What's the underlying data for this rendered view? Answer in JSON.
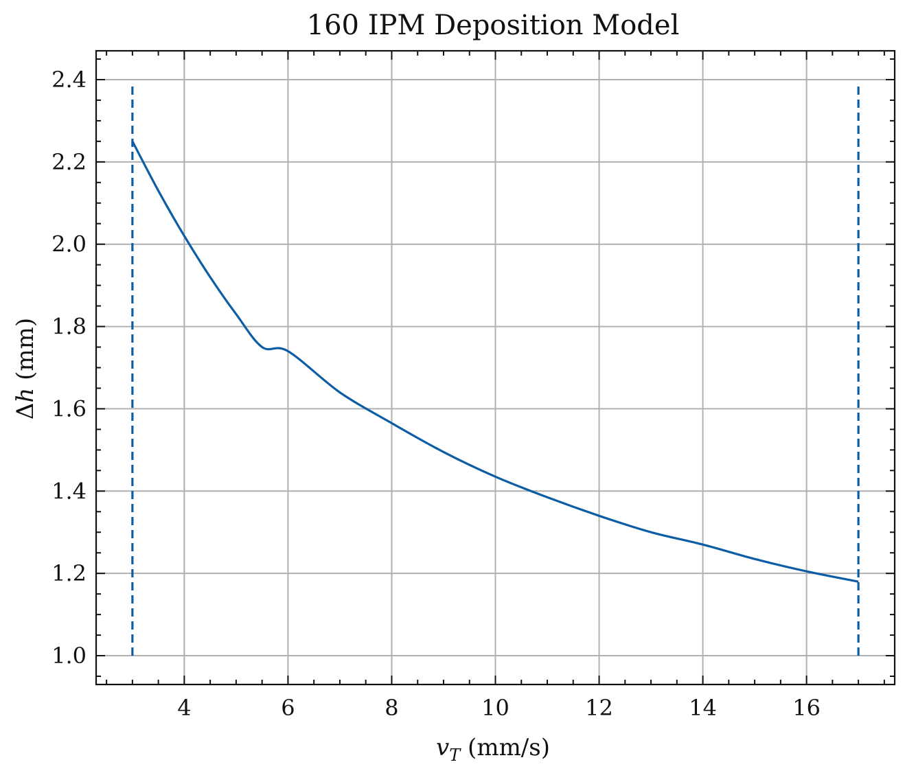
{
  "chart_data": {
    "type": "line",
    "title": "160 IPM Deposition Model",
    "xlabel": "v_T (mm/s)",
    "ylabel": "Δh (mm)",
    "xlim": [
      2.3,
      17.7
    ],
    "ylim": [
      0.93,
      2.47
    ],
    "x_ticks": [
      4,
      6,
      8,
      10,
      12,
      14,
      16
    ],
    "x_tick_labels": [
      "4",
      "6",
      "8",
      "10",
      "12",
      "14",
      "16"
    ],
    "y_ticks": [
      1.0,
      1.2,
      1.4,
      1.6,
      1.8,
      2.0,
      2.2,
      2.4
    ],
    "y_tick_labels": [
      "1.0",
      "1.2",
      "1.4",
      "1.6",
      "1.8",
      "2.0",
      "2.2",
      "2.4"
    ],
    "grid": true,
    "series": [
      {
        "style": "solid",
        "color": "#0C5DA5",
        "x": [
          3,
          3.5,
          4,
          4.5,
          5,
          5.5,
          6,
          7,
          8,
          9,
          10,
          11,
          12,
          13,
          14,
          15,
          16,
          17
        ],
        "y": [
          2.25,
          2.13,
          2.02,
          1.92,
          1.83,
          1.75,
          1.74,
          1.64,
          1.565,
          1.495,
          1.435,
          1.385,
          1.34,
          1.3,
          1.27,
          1.235,
          1.205,
          1.18
        ]
      }
    ],
    "vertical_lines": [
      {
        "x": 3,
        "y0": 1.0,
        "y1": 2.39,
        "style": "dashed",
        "color": "#0C5DA5"
      },
      {
        "x": 17,
        "y0": 1.0,
        "y1": 2.39,
        "style": "dashed",
        "color": "#0C5DA5"
      }
    ]
  }
}
